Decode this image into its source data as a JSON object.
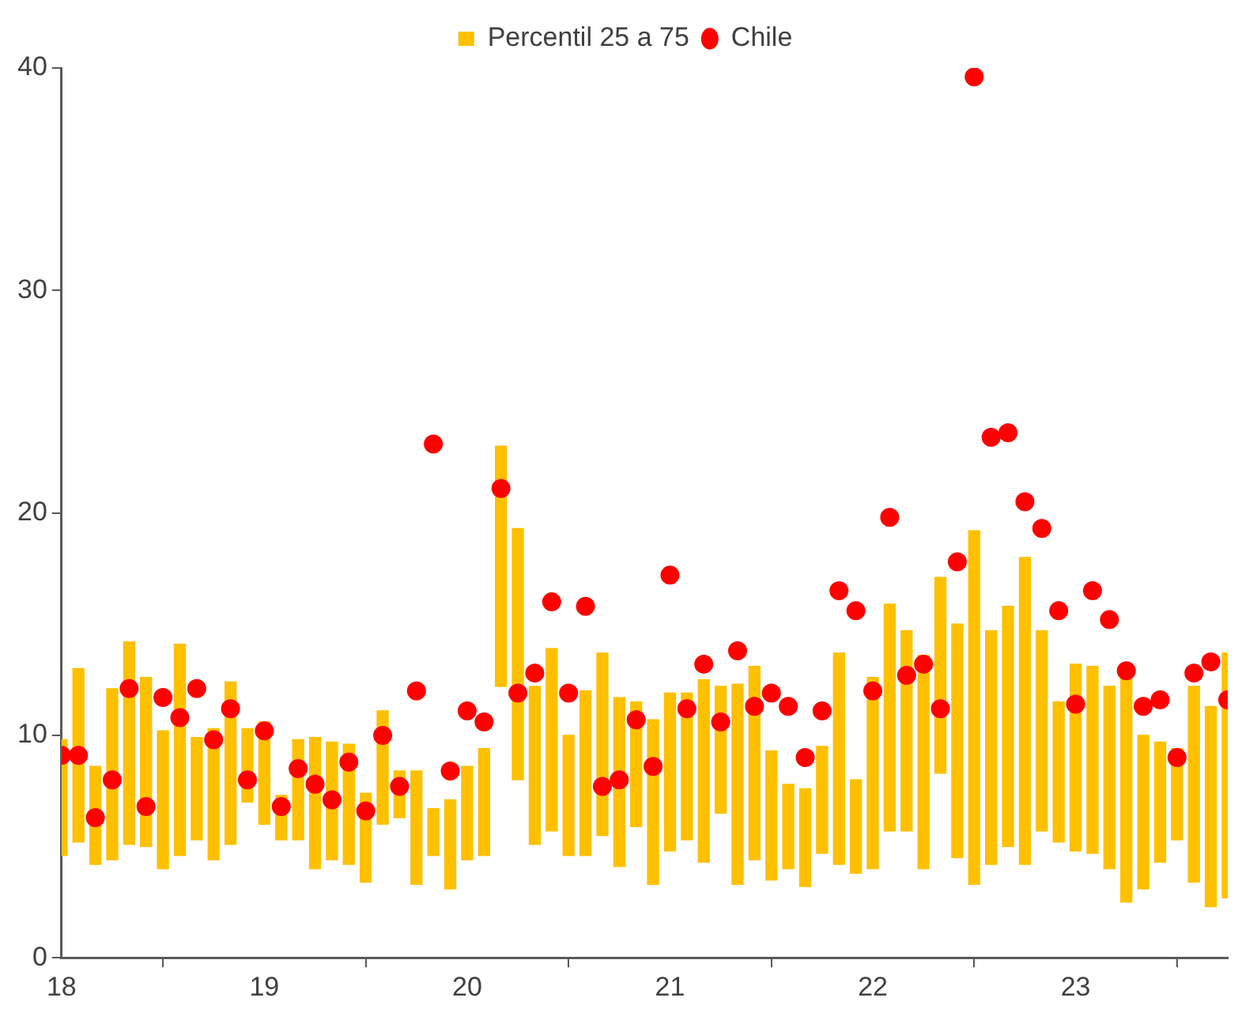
{
  "chart_data": {
    "type": "bar",
    "x": [
      "2018-01",
      "2018-02",
      "2018-03",
      "2018-04",
      "2018-05",
      "2018-06",
      "2018-07",
      "2018-08",
      "2018-09",
      "2018-10",
      "2018-11",
      "2018-12",
      "2019-01",
      "2019-02",
      "2019-03",
      "2019-04",
      "2019-05",
      "2019-06",
      "2019-07",
      "2019-08",
      "2019-09",
      "2019-10",
      "2019-11",
      "2019-12",
      "2020-01",
      "2020-02",
      "2020-03",
      "2020-04",
      "2020-05",
      "2020-06",
      "2020-07",
      "2020-08",
      "2020-09",
      "2020-10",
      "2020-11",
      "2020-12",
      "2021-01",
      "2021-02",
      "2021-03",
      "2021-04",
      "2021-05",
      "2021-06",
      "2021-07",
      "2021-08",
      "2021-09",
      "2021-10",
      "2021-11",
      "2021-12",
      "2022-01",
      "2022-02",
      "2022-03",
      "2022-04",
      "2022-05",
      "2022-06",
      "2022-07",
      "2022-08",
      "2022-09",
      "2022-10",
      "2022-11",
      "2022-12",
      "2023-01",
      "2023-02",
      "2023-03",
      "2023-04",
      "2023-05",
      "2023-06",
      "2023-07",
      "2023-08",
      "2023-09",
      "2023-10"
    ],
    "series": [
      {
        "name": "Percentil 25 a 75",
        "color": "#ffc000",
        "base": [
          4.6,
          5.2,
          4.2,
          4.4,
          5.1,
          5.0,
          4.0,
          4.6,
          5.3,
          4.4,
          5.1,
          7.0,
          6.0,
          5.3,
          5.3,
          4.0,
          4.4,
          4.2,
          3.4,
          6.0,
          6.3,
          3.3,
          4.6,
          3.1,
          4.4,
          4.6,
          12.2,
          8.0,
          5.1,
          5.7,
          4.6,
          4.6,
          5.5,
          4.1,
          5.9,
          3.3,
          4.8,
          5.3,
          4.3,
          6.5,
          3.3,
          4.4,
          3.5,
          4.0,
          3.2,
          4.7,
          4.2,
          3.8,
          4.0,
          5.7,
          5.7,
          4.0,
          8.3,
          4.5,
          3.3,
          4.2,
          5.0,
          4.2,
          5.7,
          5.2,
          4.8,
          4.7,
          4.0,
          2.5,
          3.1,
          4.3,
          5.3,
          3.4,
          2.3,
          2.7
        ],
        "values": [
          5.2,
          7.8,
          4.4,
          7.7,
          9.1,
          7.6,
          6.2,
          9.5,
          4.6,
          5.9,
          7.3,
          3.3,
          4.6,
          2.0,
          4.5,
          5.9,
          5.3,
          5.4,
          4.0,
          5.1,
          2.1,
          5.1,
          2.1,
          4.0,
          4.2,
          4.8,
          10.8,
          11.3,
          7.1,
          8.2,
          5.4,
          7.4,
          8.2,
          7.6,
          5.6,
          7.4,
          7.1,
          6.6,
          8.2,
          5.7,
          9.0,
          8.7,
          5.8,
          3.8,
          4.4,
          4.8,
          9.5,
          4.2,
          8.6,
          10.2,
          9.0,
          9.6,
          8.8,
          10.5,
          15.9,
          10.5,
          10.8,
          13.8,
          9.0,
          6.3,
          8.4,
          8.4,
          8.2,
          10.1,
          6.9,
          5.4,
          4.1,
          8.8,
          9.0,
          11.0
        ]
      },
      {
        "name": "Chile",
        "type": "scatter",
        "color": "#ff0000",
        "values": [
          9.1,
          9.1,
          6.3,
          8.0,
          12.1,
          6.8,
          11.7,
          10.8,
          12.1,
          9.8,
          11.2,
          8.0,
          10.2,
          6.8,
          8.5,
          7.8,
          7.1,
          8.8,
          6.6,
          10.0,
          7.7,
          12.0,
          23.1,
          8.4,
          11.1,
          10.6,
          21.1,
          11.9,
          12.8,
          16.0,
          11.9,
          15.8,
          7.7,
          8.0,
          10.7,
          8.6,
          17.2,
          11.2,
          13.2,
          10.6,
          13.8,
          11.3,
          11.9,
          11.3,
          9.0,
          11.1,
          16.5,
          15.6,
          12.0,
          19.8,
          12.7,
          13.2,
          11.2,
          17.8,
          39.6,
          23.4,
          23.6,
          20.5,
          19.3,
          15.6,
          11.4,
          16.5,
          15.2,
          12.9,
          11.3,
          11.6,
          9.0,
          12.8,
          13.3,
          11.6
        ]
      }
    ],
    "xlim": [
      "2018-01",
      "2023-10"
    ],
    "xticks": [
      {
        "value": "2018-01",
        "label": "18"
      },
      {
        "value": "2019-01",
        "label": "19"
      },
      {
        "value": "2020-01",
        "label": "20"
      },
      {
        "value": "2021-01",
        "label": "21"
      },
      {
        "value": "2022-01",
        "label": "22"
      },
      {
        "value": "2023-01",
        "label": "23"
      }
    ],
    "ylim": [
      0,
      40
    ],
    "yticks": [
      0,
      10,
      20,
      30,
      40
    ],
    "grid": false,
    "legend": "top",
    "marker": "circle"
  }
}
